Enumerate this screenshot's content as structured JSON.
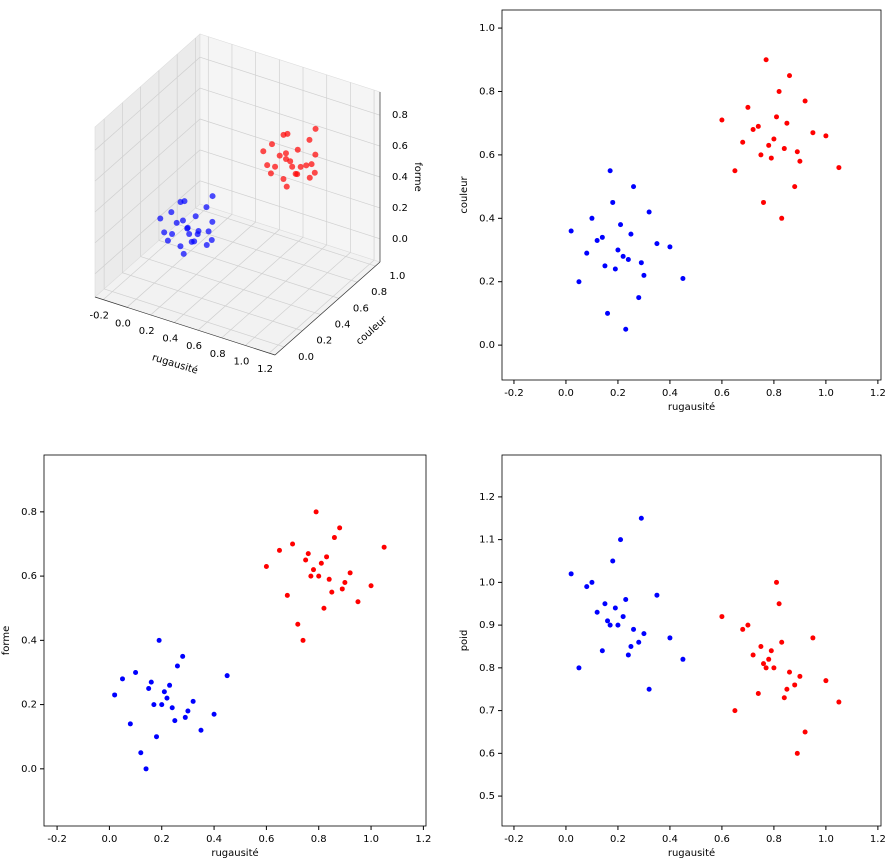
{
  "chart_data": [
    {
      "type": "scatter3d",
      "xlabel": "rugausité",
      "ylabel": "couleur",
      "zlabel": "forme",
      "xlim": [
        -0.27,
        1.25
      ],
      "ylim": [
        -0.1,
        1.05
      ],
      "zlim": [
        -0.15,
        0.95
      ],
      "xticks": [
        -0.2,
        {
          "value": 0,
          "label": "0.0"
        },
        0.2,
        0.4,
        0.6,
        0.8,
        {
          "value": 1,
          "label": "1.0"
        },
        1.2
      ],
      "yticks": [
        {
          "value": 0,
          "label": "0.0"
        },
        0.2,
        0.4,
        0.6,
        0.8,
        {
          "value": 1,
          "label": "1.0"
        }
      ],
      "zticks": [
        {
          "value": 0,
          "label": "0.0"
        },
        0.2,
        0.4,
        0.6,
        0.8
      ],
      "series": [
        {
          "color": "#0000ff",
          "x": [
            0.2,
            0.15,
            0.25,
            0.1,
            0.3,
            0.22,
            0.18,
            0.05,
            0.35,
            0.28,
            0.12,
            0.21,
            0.24,
            0.16,
            0.32,
            0.08,
            0.26,
            0.19,
            0.4,
            0.02,
            0.23,
            0.14,
            0.29,
            0.17,
            0.45
          ],
          "y": [
            0.3,
            0.25,
            0.35,
            0.4,
            0.22,
            0.28,
            0.45,
            0.2,
            0.32,
            0.15,
            0.33,
            0.38,
            0.27,
            0.1,
            0.42,
            0.29,
            0.5,
            0.24,
            0.31,
            0.36,
            0.05,
            0.34,
            0.26,
            0.55,
            0.21
          ],
          "z": [
            0.2,
            0.25,
            0.15,
            0.3,
            0.18,
            0.22,
            0.1,
            0.28,
            0.12,
            0.35,
            0.05,
            0.24,
            0.19,
            0.27,
            0.21,
            0.14,
            0.32,
            0.4,
            0.17,
            0.23,
            0.26,
            0.0,
            0.16,
            0.2,
            0.29
          ]
        },
        {
          "color": "#ff0000",
          "x": [
            0.8,
            0.75,
            0.85,
            0.7,
            0.9,
            0.78,
            0.82,
            0.65,
            0.95,
            0.88,
            0.72,
            0.81,
            0.84,
            0.76,
            0.92,
            0.68,
            0.86,
            0.79,
            1.0,
            0.6,
            0.83,
            0.74,
            0.89,
            0.77,
            1.05
          ],
          "y": [
            0.65,
            0.6,
            0.7,
            0.75,
            0.58,
            0.63,
            0.8,
            0.55,
            0.67,
            0.5,
            0.68,
            0.72,
            0.62,
            0.45,
            0.77,
            0.64,
            0.85,
            0.59,
            0.66,
            0.71,
            0.4,
            0.69,
            0.61,
            0.9,
            0.56
          ],
          "z": [
            0.6,
            0.65,
            0.55,
            0.7,
            0.58,
            0.62,
            0.5,
            0.68,
            0.52,
            0.75,
            0.45,
            0.64,
            0.59,
            0.67,
            0.61,
            0.54,
            0.72,
            0.8,
            0.57,
            0.63,
            0.66,
            0.4,
            0.56,
            0.6,
            0.69
          ]
        }
      ]
    },
    {
      "type": "scatter",
      "xlabel": "rugausité",
      "ylabel": "couleur",
      "xlim": [
        -0.246,
        1.212
      ],
      "ylim": [
        -0.11,
        1.057
      ],
      "xticks": [
        -0.2,
        {
          "value": 0,
          "label": "0.0"
        },
        0.2,
        0.4,
        0.6,
        0.8,
        {
          "value": 1,
          "label": "1.0"
        },
        1.2
      ],
      "yticks": [
        {
          "value": 0,
          "label": "0.0"
        },
        0.2,
        0.4,
        0.6,
        0.8,
        {
          "value": 1,
          "label": "1.0"
        }
      ],
      "series": [
        {
          "color": "#0000ff",
          "x": [
            0.2,
            0.15,
            0.25,
            0.1,
            0.3,
            0.22,
            0.18,
            0.05,
            0.35,
            0.28,
            0.12,
            0.21,
            0.24,
            0.16,
            0.32,
            0.08,
            0.26,
            0.19,
            0.4,
            0.02,
            0.23,
            0.14,
            0.29,
            0.17,
            0.45
          ],
          "y": [
            0.3,
            0.25,
            0.35,
            0.4,
            0.22,
            0.28,
            0.45,
            0.2,
            0.32,
            0.15,
            0.33,
            0.38,
            0.27,
            0.1,
            0.42,
            0.29,
            0.5,
            0.24,
            0.31,
            0.36,
            0.05,
            0.34,
            0.26,
            0.55,
            0.21
          ]
        },
        {
          "color": "#ff0000",
          "x": [
            0.8,
            0.75,
            0.85,
            0.7,
            0.9,
            0.78,
            0.82,
            0.65,
            0.95,
            0.88,
            0.72,
            0.81,
            0.84,
            0.76,
            0.92,
            0.68,
            0.86,
            0.79,
            1.0,
            0.6,
            0.83,
            0.74,
            0.89,
            0.77,
            1.05
          ],
          "y": [
            0.65,
            0.6,
            0.7,
            0.75,
            0.58,
            0.63,
            0.8,
            0.55,
            0.67,
            0.5,
            0.68,
            0.72,
            0.62,
            0.45,
            0.77,
            0.64,
            0.85,
            0.59,
            0.66,
            0.71,
            0.4,
            0.69,
            0.61,
            0.9,
            0.56
          ]
        }
      ]
    },
    {
      "type": "scatter",
      "xlabel": "rugausité",
      "ylabel": "forme",
      "xlim": [
        -0.25,
        1.21
      ],
      "ylim": [
        -0.178,
        0.977
      ],
      "xticks": [
        -0.2,
        {
          "value": 0,
          "label": "0.0"
        },
        0.2,
        0.4,
        0.6,
        0.8,
        {
          "value": 1,
          "label": "1.0"
        },
        1.2
      ],
      "yticks": [
        {
          "value": 0,
          "label": "0.0"
        },
        0.2,
        0.4,
        0.6,
        0.8
      ],
      "series": [
        {
          "color": "#0000ff",
          "x": [
            0.2,
            0.15,
            0.25,
            0.1,
            0.3,
            0.22,
            0.18,
            0.05,
            0.35,
            0.28,
            0.12,
            0.21,
            0.24,
            0.16,
            0.32,
            0.08,
            0.26,
            0.19,
            0.4,
            0.02,
            0.23,
            0.14,
            0.29,
            0.17,
            0.45
          ],
          "y": [
            0.2,
            0.25,
            0.15,
            0.3,
            0.18,
            0.22,
            0.1,
            0.28,
            0.12,
            0.35,
            0.05,
            0.24,
            0.19,
            0.27,
            0.21,
            0.14,
            0.32,
            0.4,
            0.17,
            0.23,
            0.26,
            0.0,
            0.16,
            0.2,
            0.29
          ]
        },
        {
          "color": "#ff0000",
          "x": [
            0.8,
            0.75,
            0.85,
            0.7,
            0.9,
            0.78,
            0.82,
            0.65,
            0.95,
            0.88,
            0.72,
            0.81,
            0.84,
            0.76,
            0.92,
            0.68,
            0.86,
            0.79,
            1.0,
            0.6,
            0.83,
            0.74,
            0.89,
            0.77,
            1.05
          ],
          "y": [
            0.6,
            0.65,
            0.55,
            0.7,
            0.58,
            0.62,
            0.5,
            0.68,
            0.52,
            0.75,
            0.45,
            0.64,
            0.59,
            0.67,
            0.61,
            0.54,
            0.72,
            0.8,
            0.57,
            0.63,
            0.66,
            0.4,
            0.56,
            0.6,
            0.69
          ]
        }
      ]
    },
    {
      "type": "scatter",
      "xlabel": "rugausité",
      "ylabel": "poid",
      "xlim": [
        -0.246,
        1.212
      ],
      "ylim": [
        0.43,
        1.298
      ],
      "xticks": [
        -0.2,
        {
          "value": 0,
          "label": "0.0"
        },
        0.2,
        0.4,
        0.6,
        0.8,
        {
          "value": 1,
          "label": "1.0"
        },
        1.2
      ],
      "yticks": [
        0.5,
        0.6,
        0.7,
        0.8,
        0.9,
        {
          "value": 1,
          "label": "1.0"
        },
        1.1,
        1.2
      ],
      "series": [
        {
          "color": "#0000ff",
          "x": [
            0.2,
            0.15,
            0.25,
            0.1,
            0.3,
            0.22,
            0.18,
            0.05,
            0.35,
            0.28,
            0.12,
            0.21,
            0.24,
            0.16,
            0.32,
            0.08,
            0.26,
            0.19,
            0.4,
            0.02,
            0.23,
            0.14,
            0.29,
            0.17,
            0.45
          ],
          "y": [
            0.9,
            0.95,
            0.85,
            1.0,
            0.88,
            0.92,
            1.05,
            0.8,
            0.97,
            0.86,
            0.93,
            1.1,
            0.83,
            0.91,
            0.75,
            0.99,
            0.89,
            0.94,
            0.87,
            1.02,
            0.96,
            0.84,
            1.15,
            0.9,
            0.82
          ]
        },
        {
          "color": "#ff0000",
          "x": [
            0.8,
            0.75,
            0.85,
            0.7,
            0.9,
            0.78,
            0.82,
            0.65,
            0.95,
            0.88,
            0.72,
            0.81,
            0.84,
            0.76,
            0.92,
            0.68,
            0.86,
            0.79,
            1.0,
            0.6,
            0.83,
            0.74,
            0.89,
            0.77,
            1.05
          ],
          "y": [
            0.8,
            0.85,
            0.75,
            0.9,
            0.78,
            0.82,
            0.95,
            0.7,
            0.87,
            0.76,
            0.83,
            1.0,
            0.73,
            0.81,
            0.65,
            0.89,
            0.79,
            0.84,
            0.77,
            0.92,
            0.86,
            0.74,
            0.6,
            0.8,
            0.72
          ]
        }
      ]
    }
  ]
}
